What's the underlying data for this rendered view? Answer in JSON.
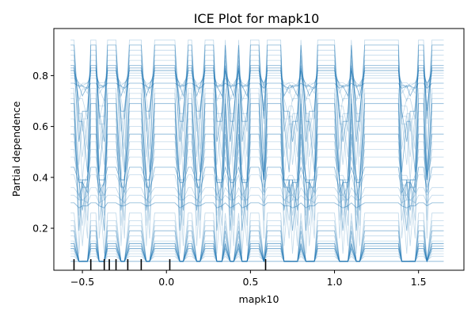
{
  "chart_data": {
    "type": "line",
    "title": "ICE Plot for mapk10",
    "xlabel": "mapk10",
    "ylabel": "Partial dependence",
    "xlim": [
      -0.67,
      1.77
    ],
    "ylim": [
      0.035,
      0.985
    ],
    "xticks": [
      {
        "value": -0.5,
        "label": "−0.5"
      },
      {
        "value": 0.0,
        "label": "0.0"
      },
      {
        "value": 0.5,
        "label": "0.5"
      },
      {
        "value": 1.0,
        "label": "1.0"
      },
      {
        "value": 1.5,
        "label": "1.5"
      }
    ],
    "yticks": [
      {
        "value": 0.2,
        "label": "0.2"
      },
      {
        "value": 0.4,
        "label": "0.4"
      },
      {
        "value": 0.6,
        "label": "0.6"
      },
      {
        "value": 0.8,
        "label": "0.8"
      }
    ],
    "grid": false,
    "line_color": "#1f77b4",
    "rug_color": "#000000",
    "rug_x": [
      -0.55,
      -0.45,
      -0.37,
      -0.34,
      -0.3,
      -0.23,
      -0.15,
      0.02,
      0.59
    ],
    "grid_x": [
      -0.57,
      -0.55,
      -0.52,
      -0.5,
      -0.47,
      -0.45,
      -0.42,
      -0.4,
      -0.37,
      -0.35,
      -0.32,
      -0.3,
      -0.27,
      -0.25,
      -0.22,
      -0.2,
      -0.17,
      -0.15,
      -0.12,
      -0.1,
      -0.07,
      -0.05,
      -0.02,
      0.0,
      0.03,
      0.05,
      0.08,
      0.1,
      0.13,
      0.15,
      0.18,
      0.2,
      0.23,
      0.25,
      0.28,
      0.3,
      0.33,
      0.35,
      0.38,
      0.4,
      0.43,
      0.45,
      0.48,
      0.5,
      0.53,
      0.55,
      0.58,
      0.6,
      0.63,
      0.65,
      0.68,
      0.7,
      0.73,
      0.75,
      0.78,
      0.8,
      0.83,
      0.85,
      0.88,
      0.9,
      0.93,
      0.95,
      0.98,
      1.0,
      1.03,
      1.05,
      1.08,
      1.1,
      1.13,
      1.15,
      1.18,
      1.2,
      1.23,
      1.25,
      1.28,
      1.3,
      1.33,
      1.35,
      1.38,
      1.4,
      1.43,
      1.45,
      1.48,
      1.5,
      1.53,
      1.55,
      1.58,
      1.6,
      1.63,
      1.65
    ],
    "curve_levels": [
      0.07,
      0.09,
      0.1,
      0.11,
      0.12,
      0.12,
      0.13,
      0.13,
      0.14,
      0.14,
      0.15,
      0.17,
      0.19,
      0.21,
      0.23,
      0.26,
      0.3,
      0.33,
      0.36,
      0.41,
      0.44,
      0.48,
      0.51,
      0.54,
      0.57,
      0.6,
      0.63,
      0.66,
      0.69,
      0.71,
      0.73,
      0.75,
      0.77,
      0.79,
      0.8,
      0.81,
      0.82,
      0.82,
      0.83,
      0.83,
      0.84,
      0.86,
      0.88,
      0.9,
      0.92,
      0.94
    ],
    "curve_drops": [
      0.02,
      0.03,
      0.05,
      0.08,
      0.1,
      0.12,
      0.2,
      0.25,
      0.3,
      0.35,
      0.4,
      0.45,
      0.5,
      0.55,
      0.6,
      0.65
    ],
    "dip_regions": [
      [
        -0.53,
        -0.47
      ],
      [
        -0.4,
        -0.36
      ],
      [
        -0.27,
        -0.23
      ],
      [
        -0.13,
        -0.09
      ],
      [
        0.06,
        0.1
      ],
      [
        0.17,
        0.21
      ],
      [
        0.29,
        0.33
      ],
      [
        0.38,
        0.41
      ],
      [
        0.45,
        0.49
      ],
      [
        0.56,
        0.59
      ],
      [
        0.69,
        0.78
      ],
      [
        0.81,
        0.88
      ],
      [
        1.02,
        1.09
      ],
      [
        1.13,
        1.17
      ],
      [
        1.4,
        1.48
      ],
      [
        1.54,
        1.57
      ]
    ]
  }
}
